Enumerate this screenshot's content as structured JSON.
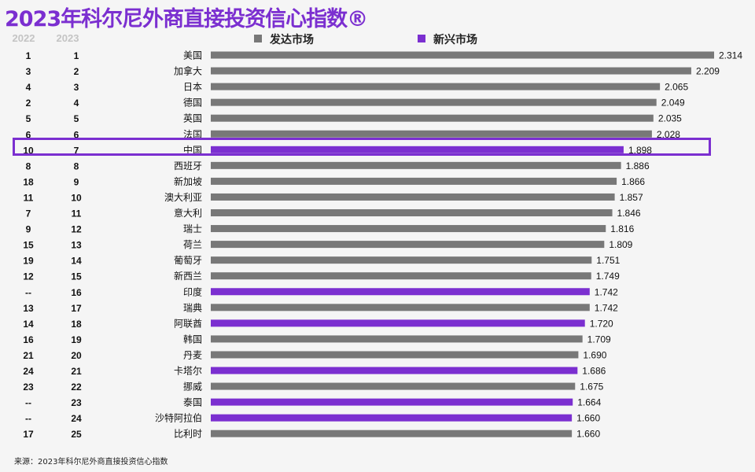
{
  "title": "2023年科尔尼外商直接投资信心指数®",
  "column_headers": {
    "prev_year": "2022",
    "curr_year": "2023"
  },
  "legend": [
    {
      "label": "发达市场",
      "color": "#787878"
    },
    {
      "label": "新兴市场",
      "color": "#7b2fd0"
    }
  ],
  "source": "来源：2023年科尔尼外商直接投资信心指数",
  "highlighted_country": "中国",
  "chart_data": {
    "type": "bar",
    "orientation": "horizontal",
    "title": "2023年科尔尼外商直接投资信心指数®",
    "xlim": [
      0,
      2.42
    ],
    "grid": false,
    "legend_position": "top",
    "categories": [
      "美国",
      "加拿大",
      "日本",
      "德国",
      "英国",
      "法国",
      "中国",
      "西班牙",
      "新加坡",
      "澳大利亚",
      "意大利",
      "瑞士",
      "荷兰",
      "葡萄牙",
      "新西兰",
      "印度",
      "瑞典",
      "阿联酋",
      "韩国",
      "丹麦",
      "卡塔尔",
      "挪威",
      "泰国",
      "沙特阿拉伯",
      "比利时"
    ],
    "values": [
      2.314,
      2.209,
      2.065,
      2.049,
      2.035,
      2.028,
      1.898,
      1.886,
      1.866,
      1.857,
      1.846,
      1.816,
      1.809,
      1.751,
      1.749,
      1.742,
      1.742,
      1.72,
      1.709,
      1.69,
      1.686,
      1.675,
      1.664,
      1.66,
      1.66
    ],
    "value_labels": [
      "2.314",
      "2.209",
      "2.065",
      "2.049",
      "2.035",
      "2.028",
      "1.898",
      "1.886",
      "1.866",
      "1.857",
      "1.846",
      "1.816",
      "1.809",
      "1.751",
      "1.749",
      "1.742",
      "1.742",
      "1.720",
      "1.709",
      "1.690",
      "1.686",
      "1.675",
      "1.664",
      "1.660",
      "1.660"
    ],
    "rank_2022": [
      "1",
      "3",
      "4",
      "2",
      "5",
      "6",
      "10",
      "8",
      "18",
      "11",
      "7",
      "9",
      "15",
      "19",
      "12",
      "--",
      "13",
      "14",
      "16",
      "21",
      "24",
      "23",
      "--",
      "--",
      "17"
    ],
    "rank_2023": [
      "1",
      "2",
      "3",
      "4",
      "5",
      "6",
      "7",
      "8",
      "9",
      "10",
      "11",
      "12",
      "13",
      "14",
      "15",
      "16",
      "17",
      "18",
      "19",
      "20",
      "21",
      "22",
      "23",
      "24",
      "25"
    ],
    "market_type": [
      "发达市场",
      "发达市场",
      "发达市场",
      "发达市场",
      "发达市场",
      "发达市场",
      "新兴市场",
      "发达市场",
      "发达市场",
      "发达市场",
      "发达市场",
      "发达市场",
      "发达市场",
      "发达市场",
      "发达市场",
      "新兴市场",
      "发达市场",
      "新兴市场",
      "发达市场",
      "发达市场",
      "新兴市场",
      "发达市场",
      "新兴市场",
      "新兴市场",
      "发达市场"
    ]
  }
}
